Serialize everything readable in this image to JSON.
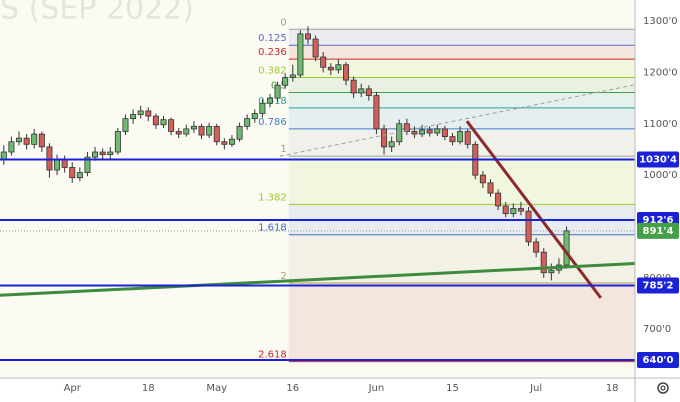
{
  "chart_data": {
    "type": "candlestick",
    "watermark": "S (SEP 2022)",
    "categories": [
      null,
      null,
      null,
      null,
      null,
      null,
      null,
      null,
      null,
      "Apr",
      null,
      null,
      null,
      null,
      null,
      null,
      null,
      null,
      null,
      "18",
      null,
      null,
      null,
      null,
      null,
      null,
      null,
      null,
      "May",
      null,
      null,
      null,
      null,
      null,
      null,
      null,
      null,
      null,
      "16",
      null,
      null,
      null,
      null,
      null,
      null,
      null,
      null,
      null,
      null,
      "Jun",
      null,
      null,
      null,
      null,
      null,
      null,
      null,
      null,
      null,
      "15",
      null,
      null,
      null,
      null,
      null,
      null,
      null,
      null,
      null,
      null,
      "Jul",
      null,
      null,
      null,
      null,
      null,
      null,
      null,
      null,
      null,
      "18",
      null,
      null
    ],
    "open": [
      1030,
      1045,
      1065,
      1072,
      1060,
      1080,
      1055,
      1010,
      1030,
      1015,
      995,
      1005,
      1035,
      1045,
      1040,
      1045,
      1085,
      1110,
      1118,
      1125,
      1115,
      1098,
      1108,
      1085,
      1080,
      1090,
      1095,
      1078,
      1095,
      1065,
      1060,
      1070,
      1095,
      1110,
      1120,
      1140,
      1150,
      1175,
      1190,
      1195,
      1275,
      1265,
      1230,
      1210,
      1205,
      1215,
      1185,
      1160,
      1168,
      1155,
      1090,
      1055,
      1065,
      1100,
      1085,
      1080,
      1088,
      1082,
      1090,
      1075,
      1065,
      1085,
      1060,
      1000,
      985,
      965,
      940,
      925,
      935,
      930,
      870,
      850,
      810,
      815,
      825,
      null,
      null,
      null,
      null,
      null,
      null,
      null,
      null
    ],
    "high": [
      1058,
      1075,
      1085,
      1080,
      1090,
      1085,
      1062,
      1040,
      1038,
      1025,
      1015,
      1045,
      1055,
      1052,
      1055,
      1092,
      1118,
      1128,
      1135,
      1132,
      1120,
      1115,
      1112,
      1092,
      1098,
      1105,
      1100,
      1102,
      1100,
      1072,
      1078,
      1102,
      1118,
      1128,
      1148,
      1158,
      1182,
      1198,
      1215,
      1282,
      1290,
      1272,
      1240,
      1218,
      1225,
      1220,
      1192,
      1178,
      1175,
      1162,
      1098,
      1075,
      1108,
      1110,
      1095,
      1098,
      1095,
      1098,
      1096,
      1082,
      1095,
      1090,
      1066,
      1008,
      992,
      972,
      948,
      945,
      948,
      938,
      878,
      858,
      828,
      838,
      900,
      null,
      null,
      null,
      null,
      null,
      null,
      null,
      null
    ],
    "low": [
      1020,
      1038,
      1058,
      1050,
      1052,
      1045,
      995,
      1000,
      1005,
      985,
      988,
      998,
      1028,
      1032,
      1030,
      1040,
      1078,
      1100,
      1110,
      1105,
      1090,
      1092,
      1078,
      1072,
      1075,
      1082,
      1070,
      1072,
      1058,
      1050,
      1055,
      1065,
      1088,
      1102,
      1112,
      1132,
      1142,
      1168,
      1182,
      1190,
      1255,
      1222,
      1200,
      1195,
      1198,
      1175,
      1150,
      1152,
      1145,
      1080,
      1040,
      1045,
      1058,
      1078,
      1072,
      1074,
      1075,
      1076,
      1068,
      1058,
      1060,
      1052,
      992,
      975,
      958,
      932,
      918,
      918,
      922,
      862,
      840,
      800,
      795,
      808,
      818,
      null,
      null,
      null,
      null,
      null,
      null,
      null,
      null
    ],
    "close": [
      1045,
      1065,
      1072,
      1060,
      1080,
      1055,
      1010,
      1030,
      1015,
      995,
      1005,
      1035,
      1045,
      1040,
      1045,
      1085,
      1110,
      1118,
      1125,
      1115,
      1098,
      1108,
      1085,
      1080,
      1090,
      1095,
      1078,
      1095,
      1065,
      1060,
      1070,
      1095,
      1110,
      1120,
      1140,
      1150,
      1175,
      1190,
      1195,
      1275,
      1265,
      1230,
      1210,
      1205,
      1215,
      1185,
      1160,
      1168,
      1155,
      1090,
      1055,
      1065,
      1100,
      1085,
      1080,
      1088,
      1082,
      1090,
      1075,
      1065,
      1085,
      1060,
      1000,
      985,
      965,
      940,
      925,
      935,
      930,
      870,
      850,
      810,
      815,
      825,
      891.4,
      null,
      null,
      null,
      null,
      null,
      null,
      null,
      null
    ],
    "up_color": "#6dbb6f",
    "down_color": "#d2605a",
    "xlim": [
      -0.5,
      83
    ],
    "ylim": [
      605,
      1341
    ],
    "yticks": [
      {
        "value": 700,
        "label": "700'0"
      },
      {
        "value": 800,
        "label": "800'0"
      },
      {
        "value": 900,
        "label": "900'0"
      },
      {
        "value": 1000,
        "label": "1000'0"
      },
      {
        "value": 1100,
        "label": "1100'0"
      },
      {
        "value": 1200,
        "label": "1200'0"
      },
      {
        "value": 1300,
        "label": "1300'0"
      }
    ],
    "fib_start": 38,
    "fib_levels": [
      {
        "ratio": 0,
        "price": 1284,
        "color": "#9e9e9e"
      },
      {
        "ratio": 0.125,
        "price": 1253,
        "color": "#5c6bc0"
      },
      {
        "ratio": 0.236,
        "price": 1226,
        "color": "#c62828"
      },
      {
        "ratio": 0.382,
        "price": 1190,
        "color": "#9ccc24"
      },
      {
        "ratio": 0.5,
        "price": 1161,
        "color": "#43a047"
      },
      {
        "ratio": 0.618,
        "price": 1131,
        "color": "#26a69a"
      },
      {
        "ratio": 0.786,
        "price": 1090,
        "color": "#3f7fd0"
      },
      {
        "ratio": 1,
        "price": 1037,
        "color": "#9e9e9e"
      },
      {
        "ratio": 1.382,
        "price": 943,
        "color": "#9ccc24"
      },
      {
        "ratio": 1.618,
        "price": 884,
        "color": "#3f6fd0"
      },
      {
        "ratio": 2,
        "price": 790,
        "color": "#b0a060"
      },
      {
        "ratio": 2.618,
        "price": 637,
        "color": "#c62828"
      }
    ],
    "levels": [
      {
        "value": 1030.4,
        "label": "1030'4",
        "color": "#1a22d8"
      },
      {
        "value": 912.6,
        "label": "912'6",
        "color": "#1a22d8"
      },
      {
        "value": 785.2,
        "label": "785'2",
        "color": "#1a22d8"
      },
      {
        "value": 640.0,
        "label": "640'0",
        "color": "#1a22d8"
      }
    ],
    "last_price": {
      "value": 891.4,
      "label": "891'4",
      "color": "#43a047"
    },
    "trendlines": [
      {
        "color": "#8b2a2a",
        "x": [
          60.9,
          78.5
        ],
        "y": [
          1105,
          761
        ]
      },
      {
        "color": "#3d8b3d",
        "x": [
          -0.5,
          83
        ],
        "y": [
          766,
          828
        ]
      },
      {
        "color": "#9e9e9e",
        "x": [
          36.3,
          83
        ],
        "y": [
          1037,
          1176
        ],
        "dashed": true
      }
    ]
  }
}
